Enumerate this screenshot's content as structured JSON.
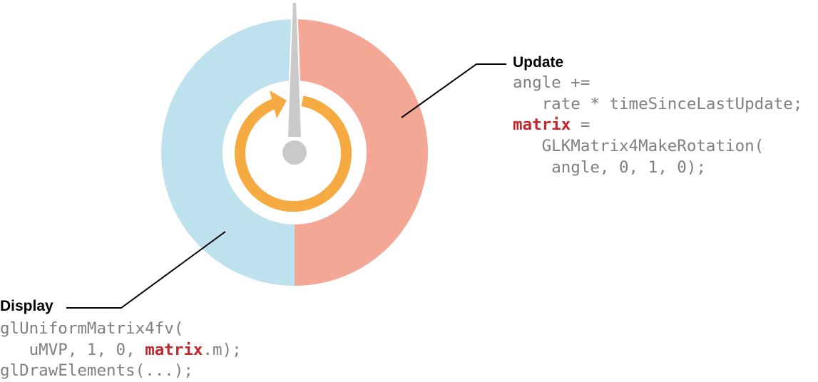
{
  "colors": {
    "display_half": "#bde1ed",
    "update_half": "#f4a795",
    "cycle_arrow": "#f6aa42",
    "needle": "#c9c9c9",
    "code_text": "#808080",
    "keyword": "#c0282d"
  },
  "update": {
    "label": "Update",
    "lines": [
      {
        "indent": "",
        "kw": "",
        "text": "angle +="
      },
      {
        "indent": "   ",
        "kw": "",
        "text": "rate * timeSinceLastUpdate;"
      },
      {
        "indent": "",
        "kw": "matrix",
        "text": " ="
      },
      {
        "indent": "   ",
        "kw": "",
        "text": "GLKMatrix4MakeRotation("
      },
      {
        "indent": "    ",
        "kw": "",
        "text": "angle, 0, 1, 0);"
      }
    ]
  },
  "display": {
    "label": "Display",
    "line1": "glUniformMatrix4fv(",
    "line2_pre": "   uMVP, 1, 0, ",
    "line2_kw": "matrix",
    "line2_post": ".m);",
    "line3": "glDrawElements(...);"
  }
}
